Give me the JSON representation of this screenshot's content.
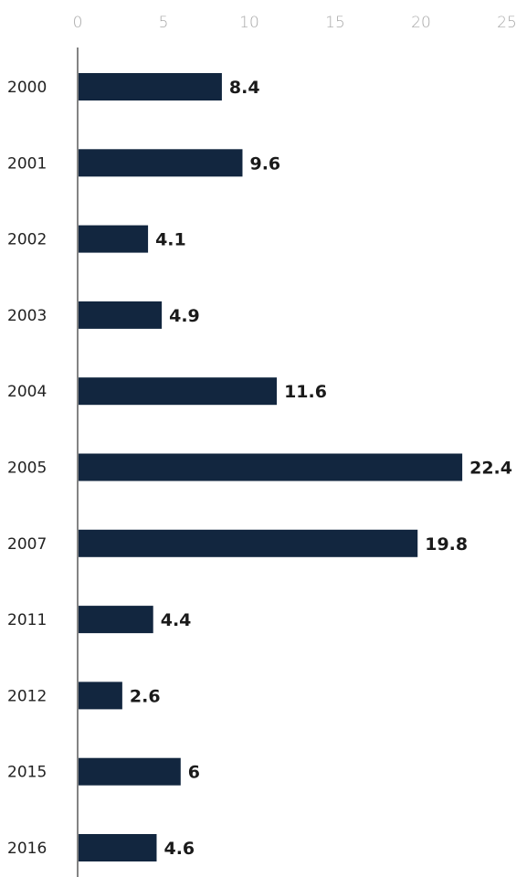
{
  "chart_data": {
    "type": "bar",
    "orientation": "horizontal",
    "categories": [
      "2000",
      "2001",
      "2002",
      "2003",
      "2004",
      "2005",
      "2007",
      "2011",
      "2012",
      "2015",
      "2016"
    ],
    "values": [
      8.4,
      9.6,
      4.1,
      4.9,
      11.6,
      22.4,
      19.8,
      4.4,
      2.6,
      6,
      4.6
    ],
    "value_labels": [
      "8.4",
      "9.6",
      "4.1",
      "4.9",
      "11.6",
      "22.4",
      "19.8",
      "4.4",
      "2.6",
      "6",
      "4.6"
    ],
    "x_ticks": [
      "0",
      "5",
      "10",
      "15",
      "20",
      "25"
    ],
    "xlim": [
      0,
      25
    ],
    "x_axis_position": "top",
    "grid": false,
    "bar_color": "#12263f"
  }
}
